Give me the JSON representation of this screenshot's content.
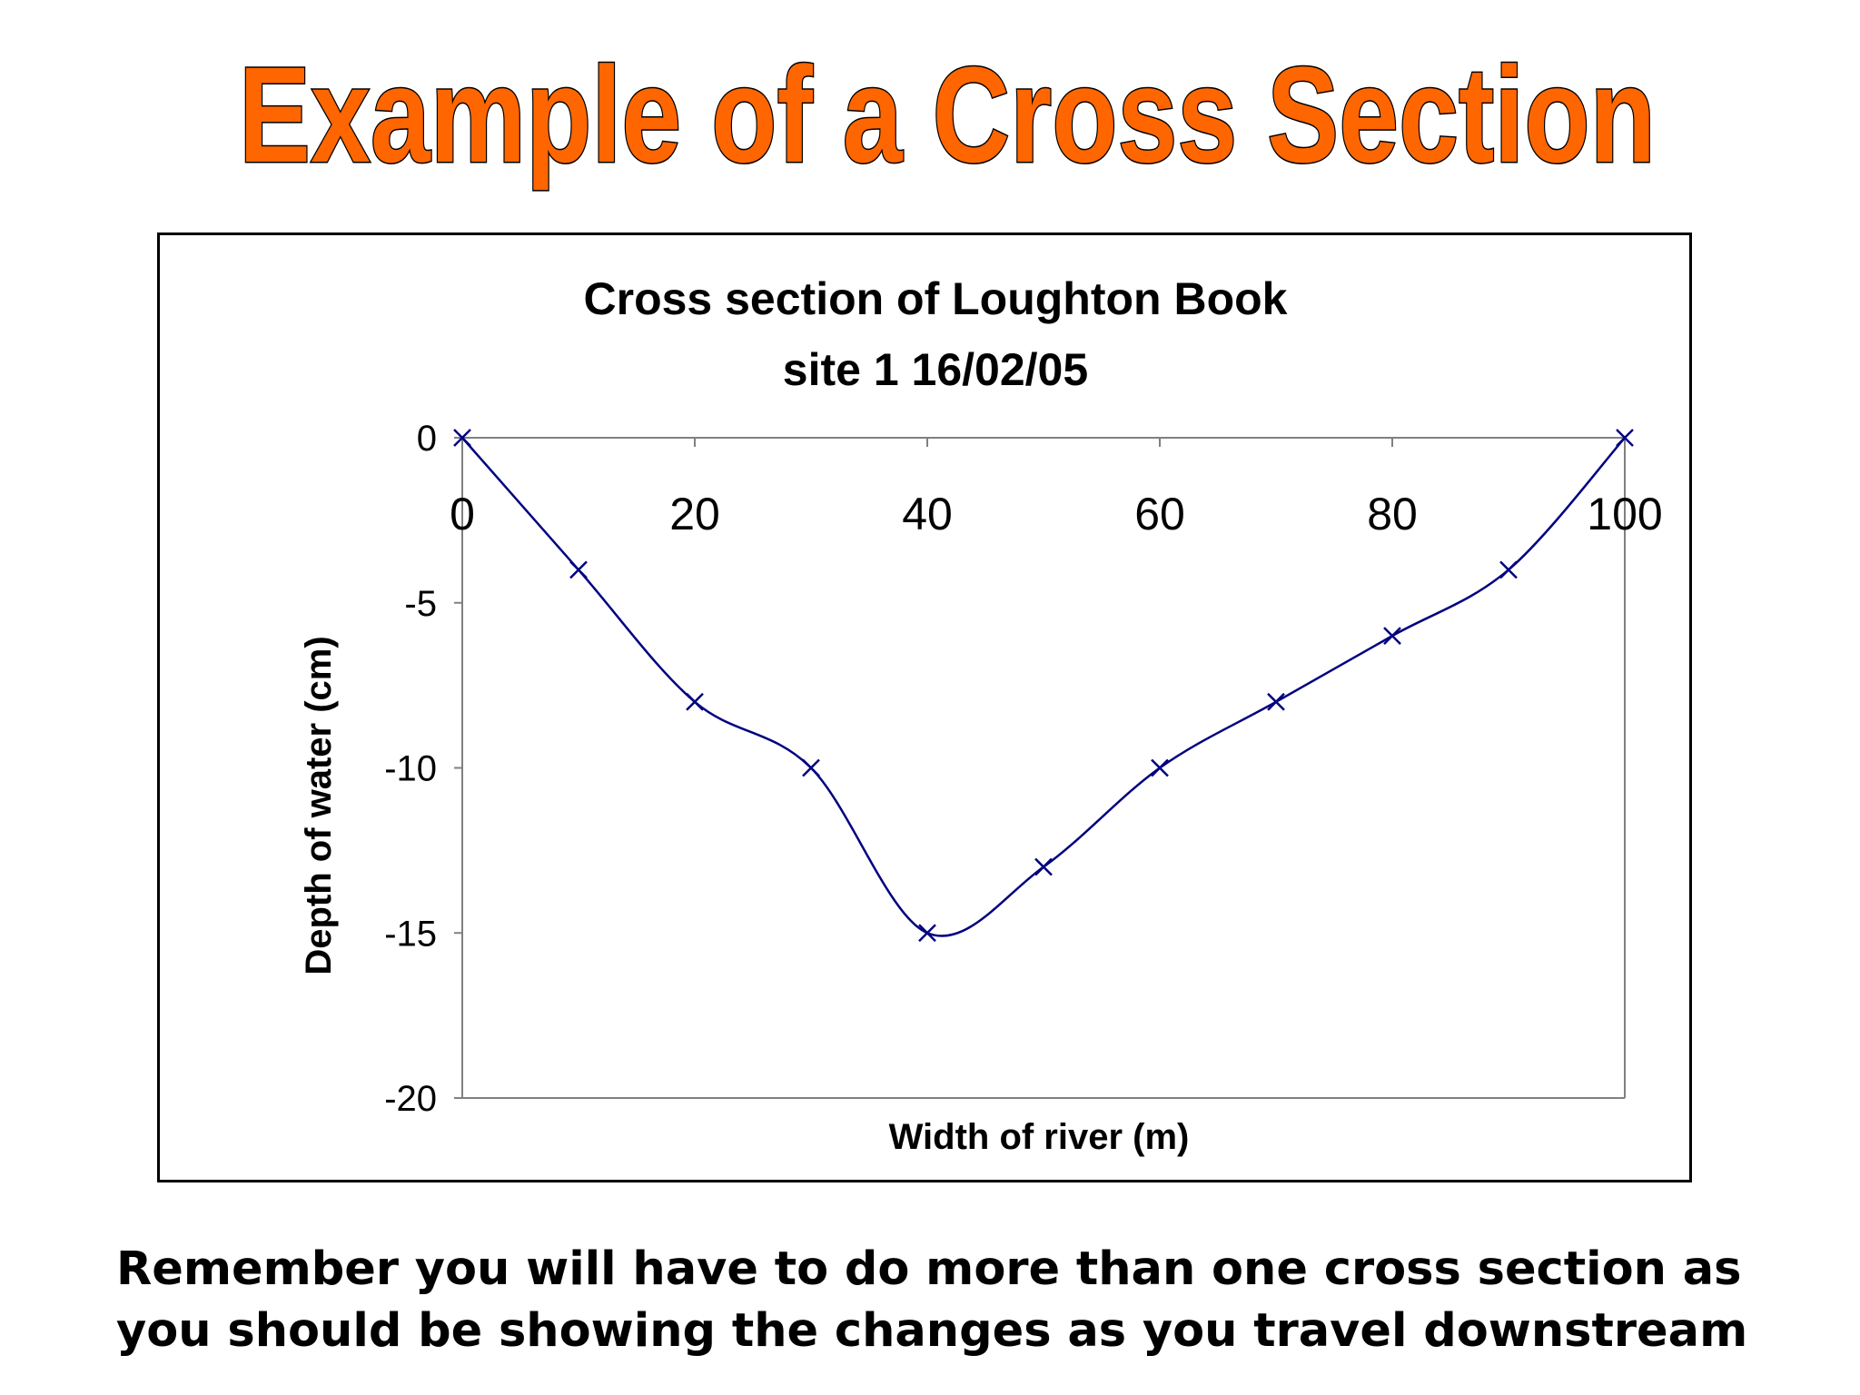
{
  "slide": {
    "title": "Example of a Cross Section",
    "title_fill": "#ff6600",
    "title_stroke": "#000000",
    "footer": [
      "Remember you will have to do more than one cross section as",
      "you should be showing the changes as you travel downstream"
    ]
  },
  "chart_data": {
    "type": "line",
    "title_lines": [
      "Cross section of Loughton Book",
      "site 1 16/02/05"
    ],
    "xlabel": "Width of river (m)",
    "ylabel": "Depth of water (cm)",
    "x": [
      0,
      10,
      20,
      30,
      40,
      50,
      60,
      70,
      80,
      90,
      100
    ],
    "series": [
      {
        "values": [
          0,
          -4,
          -8,
          -10,
          -15,
          -13,
          -10,
          -8,
          -6,
          -4,
          0
        ],
        "color": "#000080",
        "marker": "x",
        "smooth": true
      }
    ],
    "xlim": [
      0,
      100
    ],
    "ylim": [
      -20,
      0
    ],
    "xticks": [
      0,
      20,
      40,
      60,
      80,
      100
    ],
    "yticks": [
      0,
      -5,
      -10,
      -15,
      -20
    ],
    "xaxis_position": "top",
    "grid": false,
    "legend": "none"
  }
}
